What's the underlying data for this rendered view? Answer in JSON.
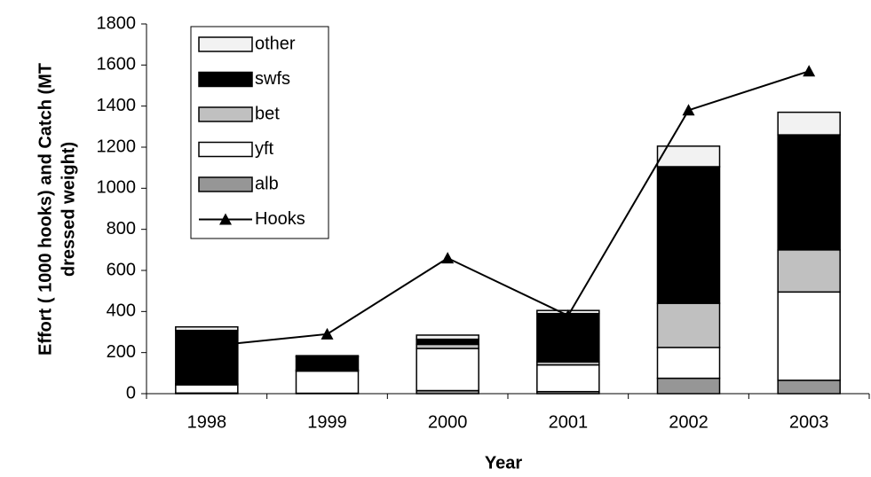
{
  "chart_data": {
    "type": "bar",
    "y_label": [
      "Effort ( 1000 hooks) and Catch (MT",
      "dressed weight)"
    ],
    "x_label": "Year",
    "categories": [
      "1998",
      "1999",
      "2000",
      "2001",
      "2002",
      "2003"
    ],
    "stacked": true,
    "series": [
      {
        "name": "alb",
        "type": "bar",
        "color": "#969696",
        "values": [
          3,
          2,
          15,
          10,
          75,
          65
        ]
      },
      {
        "name": "yft",
        "type": "bar",
        "color": "#ffffff",
        "values": [
          40,
          108,
          205,
          130,
          150,
          430
        ]
      },
      {
        "name": "bet",
        "type": "bar",
        "color": "#c0c0c0",
        "values": [
          5,
          5,
          20,
          15,
          215,
          205
        ]
      },
      {
        "name": "swfs",
        "type": "bar",
        "color": "#000000",
        "values": [
          260,
          65,
          25,
          235,
          665,
          560
        ]
      },
      {
        "name": "other",
        "type": "bar",
        "color": "#f2f2f2",
        "values": [
          17,
          5,
          20,
          15,
          100,
          110
        ]
      },
      {
        "name": "Hooks",
        "type": "line",
        "color": "#000000",
        "values": [
          230,
          290,
          660,
          380,
          1380,
          1570
        ]
      }
    ],
    "ylim": [
      0,
      1800
    ],
    "yticks": [
      0,
      200,
      400,
      600,
      800,
      1000,
      1200,
      1400,
      1600,
      1800
    ],
    "legend": "upper left"
  }
}
